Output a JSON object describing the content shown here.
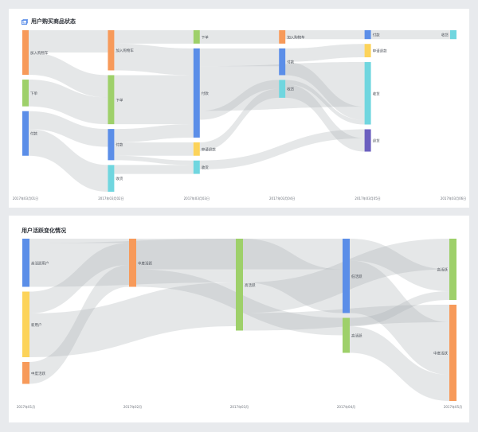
{
  "panels": [
    {
      "title": "用户购买商品状态"
    },
    {
      "title": "用户活跃变化情况"
    }
  ],
  "chart_data": [
    {
      "type": "sankey",
      "title": "用户购买商品状态",
      "x_labels": [
        "2017年03月01日",
        "2017年03月02日",
        "2017年03月03日",
        "2017年03月04日",
        "2017年03月05日",
        "2017年03月06日"
      ],
      "nodes": [
        {
          "id": "a1",
          "label": "加入购物车",
          "col": 0,
          "color": "#f79a5a"
        },
        {
          "id": "b1",
          "label": "下单",
          "col": 0,
          "color": "#9ed06a"
        },
        {
          "id": "c1",
          "label": "付款",
          "col": 0,
          "color": "#5b8ee8"
        },
        {
          "id": "a2",
          "label": "加入购物车",
          "col": 1,
          "color": "#f79a5a"
        },
        {
          "id": "b2",
          "label": "下单",
          "col": 1,
          "color": "#9ed06a"
        },
        {
          "id": "c2",
          "label": "付款",
          "col": 1,
          "color": "#5b8ee8"
        },
        {
          "id": "e2",
          "label": "收货",
          "col": 1,
          "color": "#70d6df"
        },
        {
          "id": "b3",
          "label": "下单",
          "col": 2,
          "color": "#9ed06a"
        },
        {
          "id": "c3",
          "label": "付款",
          "col": 2,
          "color": "#5b8ee8"
        },
        {
          "id": "d3",
          "label": "申请退款",
          "col": 2,
          "color": "#fcd35a"
        },
        {
          "id": "e3",
          "label": "收货",
          "col": 2,
          "color": "#70d6df"
        },
        {
          "id": "a4",
          "label": "加入购物车",
          "col": 3,
          "color": "#f79a5a"
        },
        {
          "id": "c4",
          "label": "付款",
          "col": 3,
          "color": "#5b8ee8"
        },
        {
          "id": "e4",
          "label": "收货",
          "col": 3,
          "color": "#70d6df"
        },
        {
          "id": "c5",
          "label": "付款",
          "col": 4,
          "color": "#5b8ee8"
        },
        {
          "id": "d5",
          "label": "申请退款",
          "col": 4,
          "color": "#fcd35a"
        },
        {
          "id": "e5",
          "label": "收货",
          "col": 4,
          "color": "#70d6df"
        },
        {
          "id": "f5",
          "label": "退货",
          "col": 4,
          "color": "#6b5fbf"
        },
        {
          "id": "e6",
          "label": "收货",
          "col": 5,
          "color": "#70d6df"
        }
      ],
      "links": [
        {
          "source": "a1",
          "target": "a2",
          "value": 5
        },
        {
          "source": "a1",
          "target": "b2",
          "value": 5
        },
        {
          "source": "b1",
          "target": "b2",
          "value": 6
        },
        {
          "source": "c1",
          "target": "c2",
          "value": 4
        },
        {
          "source": "c1",
          "target": "e2",
          "value": 6
        },
        {
          "source": "a2",
          "target": "b3",
          "value": 3
        },
        {
          "source": "a2",
          "target": "c3",
          "value": 6
        },
        {
          "source": "b2",
          "target": "c3",
          "value": 11
        },
        {
          "source": "c2",
          "target": "c3",
          "value": 3
        },
        {
          "source": "c2",
          "target": "d3",
          "value": 3
        },
        {
          "source": "c2",
          "target": "e3",
          "value": 1
        },
        {
          "source": "e2",
          "target": "e3",
          "value": 2
        },
        {
          "source": "b3",
          "target": "a4",
          "value": 3
        },
        {
          "source": "c3",
          "target": "c4",
          "value": 4
        },
        {
          "source": "c3",
          "target": "e5",
          "value": 10
        },
        {
          "source": "c3",
          "target": "e4",
          "value": 2
        },
        {
          "source": "d3",
          "target": "e4",
          "value": 2
        },
        {
          "source": "e3",
          "target": "f5",
          "value": 2
        },
        {
          "source": "a4",
          "target": "c5",
          "value": 2
        },
        {
          "source": "c4",
          "target": "d5",
          "value": 3
        },
        {
          "source": "c4",
          "target": "e5",
          "value": 3
        },
        {
          "source": "e4",
          "target": "e5",
          "value": 1
        },
        {
          "source": "e4",
          "target": "f5",
          "value": 3
        },
        {
          "source": "c5",
          "target": "e6",
          "value": 2
        }
      ]
    },
    {
      "type": "sankey",
      "title": "用户活跃变化情况",
      "x_labels": [
        "2017年01月",
        "2017年02月",
        "2017年03月",
        "2017年04月",
        "2017年05月"
      ],
      "nodes": [
        {
          "id": "h1",
          "label": "高活跃用户",
          "col": 0,
          "color": "#5b8ee8"
        },
        {
          "id": "n1",
          "label": "新用户",
          "col": 0,
          "color": "#fcd35a"
        },
        {
          "id": "m1",
          "label": "中度活跃",
          "col": 0,
          "color": "#f79a5a"
        },
        {
          "id": "m2",
          "label": "中度活跃",
          "col": 1,
          "color": "#f79a5a"
        },
        {
          "id": "g3",
          "label": "高活跃",
          "col": 2,
          "color": "#9ed06a"
        },
        {
          "id": "l4",
          "label": "低活跃",
          "col": 3,
          "color": "#5b8ee8"
        },
        {
          "id": "g4",
          "label": "高活跃",
          "col": 3,
          "color": "#9ed06a"
        },
        {
          "id": "g5",
          "label": "高活跃",
          "col": 4,
          "color": "#9ed06a"
        },
        {
          "id": "m5",
          "label": "中度活跃",
          "col": 4,
          "color": "#f79a5a"
        }
      ],
      "links": [
        {
          "source": "h1",
          "target": "m2",
          "value": 1
        },
        {
          "source": "h1",
          "target": "g3",
          "value": 10
        },
        {
          "source": "n1",
          "target": "m2",
          "value": 5
        },
        {
          "source": "n1",
          "target": "g3",
          "value": 10
        },
        {
          "source": "m1",
          "target": "m2",
          "value": 5
        },
        {
          "source": "m2",
          "target": "l4",
          "value": 7
        },
        {
          "source": "m2",
          "target": "g4",
          "value": 4
        },
        {
          "source": "g3",
          "target": "l4",
          "value": 10
        },
        {
          "source": "g3",
          "target": "g5",
          "value": 7
        },
        {
          "source": "g3",
          "target": "m5",
          "value": 4
        },
        {
          "source": "l4",
          "target": "g5",
          "value": 5
        },
        {
          "source": "l4",
          "target": "m5",
          "value": 12
        },
        {
          "source": "g4",
          "target": "g5",
          "value": 2
        },
        {
          "source": "g4",
          "target": "m5",
          "value": 6
        }
      ]
    }
  ]
}
